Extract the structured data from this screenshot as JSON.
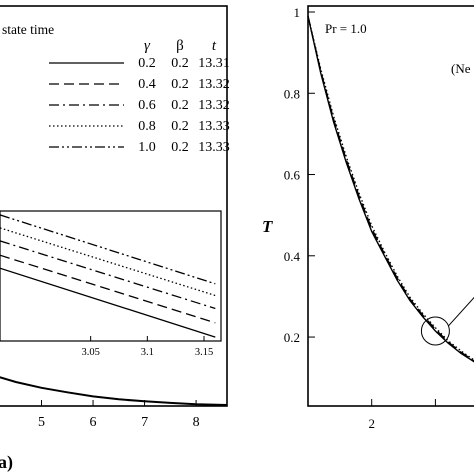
{
  "chart_data": [
    {
      "type": "line",
      "panel_label": "a)",
      "legend": {
        "title": "state time",
        "headers": [
          "γ",
          "β",
          "t"
        ],
        "placement": "top-right",
        "rows": [
          {
            "gamma": "0.2",
            "beta": "0.2",
            "t": "13.31",
            "style": "solid"
          },
          {
            "gamma": "0.4",
            "beta": "0.2",
            "t": "13.32",
            "style": "dash"
          },
          {
            "gamma": "0.6",
            "beta": "0.2",
            "t": "13.32",
            "style": "dashdot"
          },
          {
            "gamma": "0.8",
            "beta": "0.2",
            "t": "13.33",
            "style": "dot"
          },
          {
            "gamma": "1.0",
            "beta": "0.2",
            "t": "13.33",
            "style": "dashdotdot"
          }
        ]
      },
      "xlim": [
        4.0,
        8.6
      ],
      "ylim": [
        0,
        1
      ],
      "x_ticks": [
        "5",
        "6",
        "7",
        "8"
      ],
      "series": [
        {
          "style": "solid",
          "x": [
            4.0,
            4.5,
            5.0,
            5.5,
            6.0,
            6.5,
            7.0,
            7.5,
            8.0,
            8.6
          ],
          "y": [
            0.075,
            0.056,
            0.042,
            0.031,
            0.021,
            0.014,
            0.009,
            0.005,
            0.002,
            0.0
          ]
        }
      ],
      "inset": {
        "xlim": [
          2.97,
          3.165
        ],
        "x_ticks": [
          "3.05",
          "3.1",
          "3.15"
        ],
        "ylim": [
          0,
          1
        ],
        "series": [
          {
            "style": "dashdotdot",
            "x": [
              2.97,
              3.16
            ],
            "y": [
              0.97,
              0.44
            ]
          },
          {
            "style": "dot",
            "x": [
              2.97,
              3.16
            ],
            "y": [
              0.87,
              0.35
            ]
          },
          {
            "style": "dashdot",
            "x": [
              2.97,
              3.16
            ],
            "y": [
              0.77,
              0.25
            ]
          },
          {
            "style": "dash",
            "x": [
              2.97,
              3.16
            ],
            "y": [
              0.66,
              0.14
            ]
          },
          {
            "style": "solid",
            "x": [
              2.97,
              3.16
            ],
            "y": [
              0.56,
              0.03
            ]
          }
        ]
      }
    },
    {
      "type": "line",
      "annotation_pr": "Pr = 1.0",
      "annotation_partial": "(Ne",
      "ylabel": "T",
      "xlim": [
        1.0,
        3.7
      ],
      "ylim": [
        0.05,
        1.0
      ],
      "x_ticks": [
        {
          "value": 2,
          "label": "2"
        },
        {
          "value": 3,
          "label": ""
        }
      ],
      "y_ticks": [
        {
          "value": 1.0,
          "label": "1"
        },
        {
          "value": 0.8,
          "label": "0.8"
        },
        {
          "value": 0.6,
          "label": "0.6"
        },
        {
          "value": 0.4,
          "label": "0.4"
        },
        {
          "value": 0.2,
          "label": "0.2"
        }
      ],
      "series": [
        {
          "style": "solid",
          "x": [
            1.0,
            1.2,
            1.4,
            1.6,
            1.8,
            2.0,
            2.2,
            2.4,
            2.6,
            2.8,
            3.0,
            3.2,
            3.4,
            3.6,
            3.7
          ],
          "y": [
            0.99,
            0.85,
            0.73,
            0.63,
            0.54,
            0.46,
            0.4,
            0.34,
            0.29,
            0.25,
            0.215,
            0.185,
            0.16,
            0.14,
            0.13
          ]
        },
        {
          "style": "dash",
          "x": [
            1.0,
            1.2,
            1.4,
            1.6,
            1.8,
            2.0,
            2.2,
            2.4,
            2.6,
            2.8,
            3.0,
            3.2,
            3.4,
            3.6,
            3.7
          ],
          "y": [
            0.99,
            0.855,
            0.737,
            0.637,
            0.547,
            0.467,
            0.405,
            0.345,
            0.294,
            0.254,
            0.219,
            0.188,
            0.163,
            0.142,
            0.132
          ]
        },
        {
          "style": "dot",
          "x": [
            1.0,
            1.2,
            1.4,
            1.6,
            1.8,
            2.0,
            2.2,
            2.4,
            2.6,
            2.8,
            3.0,
            3.2,
            3.4,
            3.6,
            3.7
          ],
          "y": [
            0.99,
            0.86,
            0.744,
            0.644,
            0.554,
            0.474,
            0.41,
            0.35,
            0.298,
            0.258,
            0.223,
            0.191,
            0.166,
            0.144,
            0.134
          ]
        }
      ],
      "magnifier": {
        "cx": 3.0,
        "cy": 0.215
      }
    }
  ]
}
